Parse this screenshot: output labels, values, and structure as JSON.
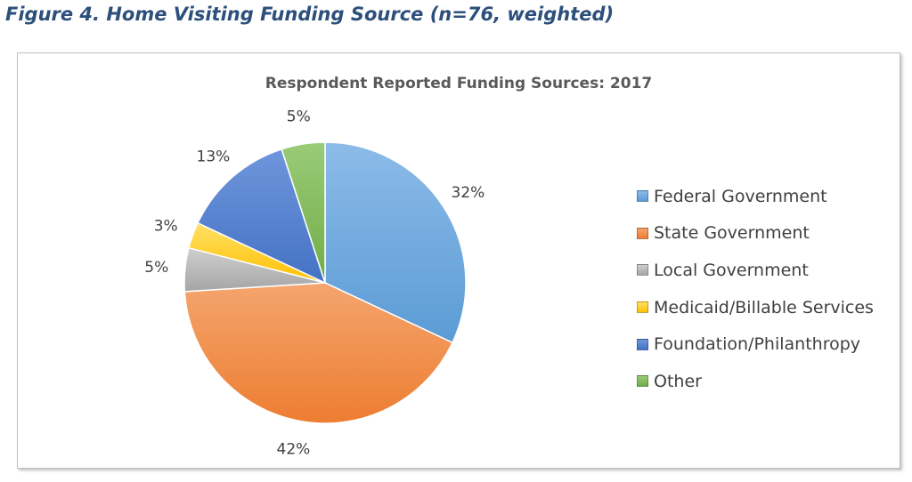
{
  "figure_caption": "Figure 4.  Home Visiting Funding Source (n=76, weighted)",
  "chart_data": {
    "type": "pie",
    "title": "Respondent Reported Funding Sources: 2017",
    "legend_position": "right",
    "slices": [
      {
        "label": "Federal Government",
        "value": 32,
        "display": "32%",
        "color": "#5b9bd5",
        "light": "#8cbbe8"
      },
      {
        "label": "State Government",
        "value": 42,
        "display": "42%",
        "color": "#ed7d31",
        "light": "#f4a56e"
      },
      {
        "label": "Local Government",
        "value": 5,
        "display": "5%",
        "color": "#a5a5a5",
        "light": "#cfcfcf"
      },
      {
        "label": "Medicaid/Billable Services",
        "value": 3,
        "display": "3%",
        "color": "#ffc000",
        "light": "#ffe066"
      },
      {
        "label": "Foundation/Philanthropy",
        "value": 13,
        "display": "13%",
        "color": "#4472c4",
        "light": "#6f96dc"
      },
      {
        "label": "Other",
        "value": 5,
        "display": "5%",
        "color": "#70ad47",
        "light": "#9acb78"
      }
    ]
  }
}
